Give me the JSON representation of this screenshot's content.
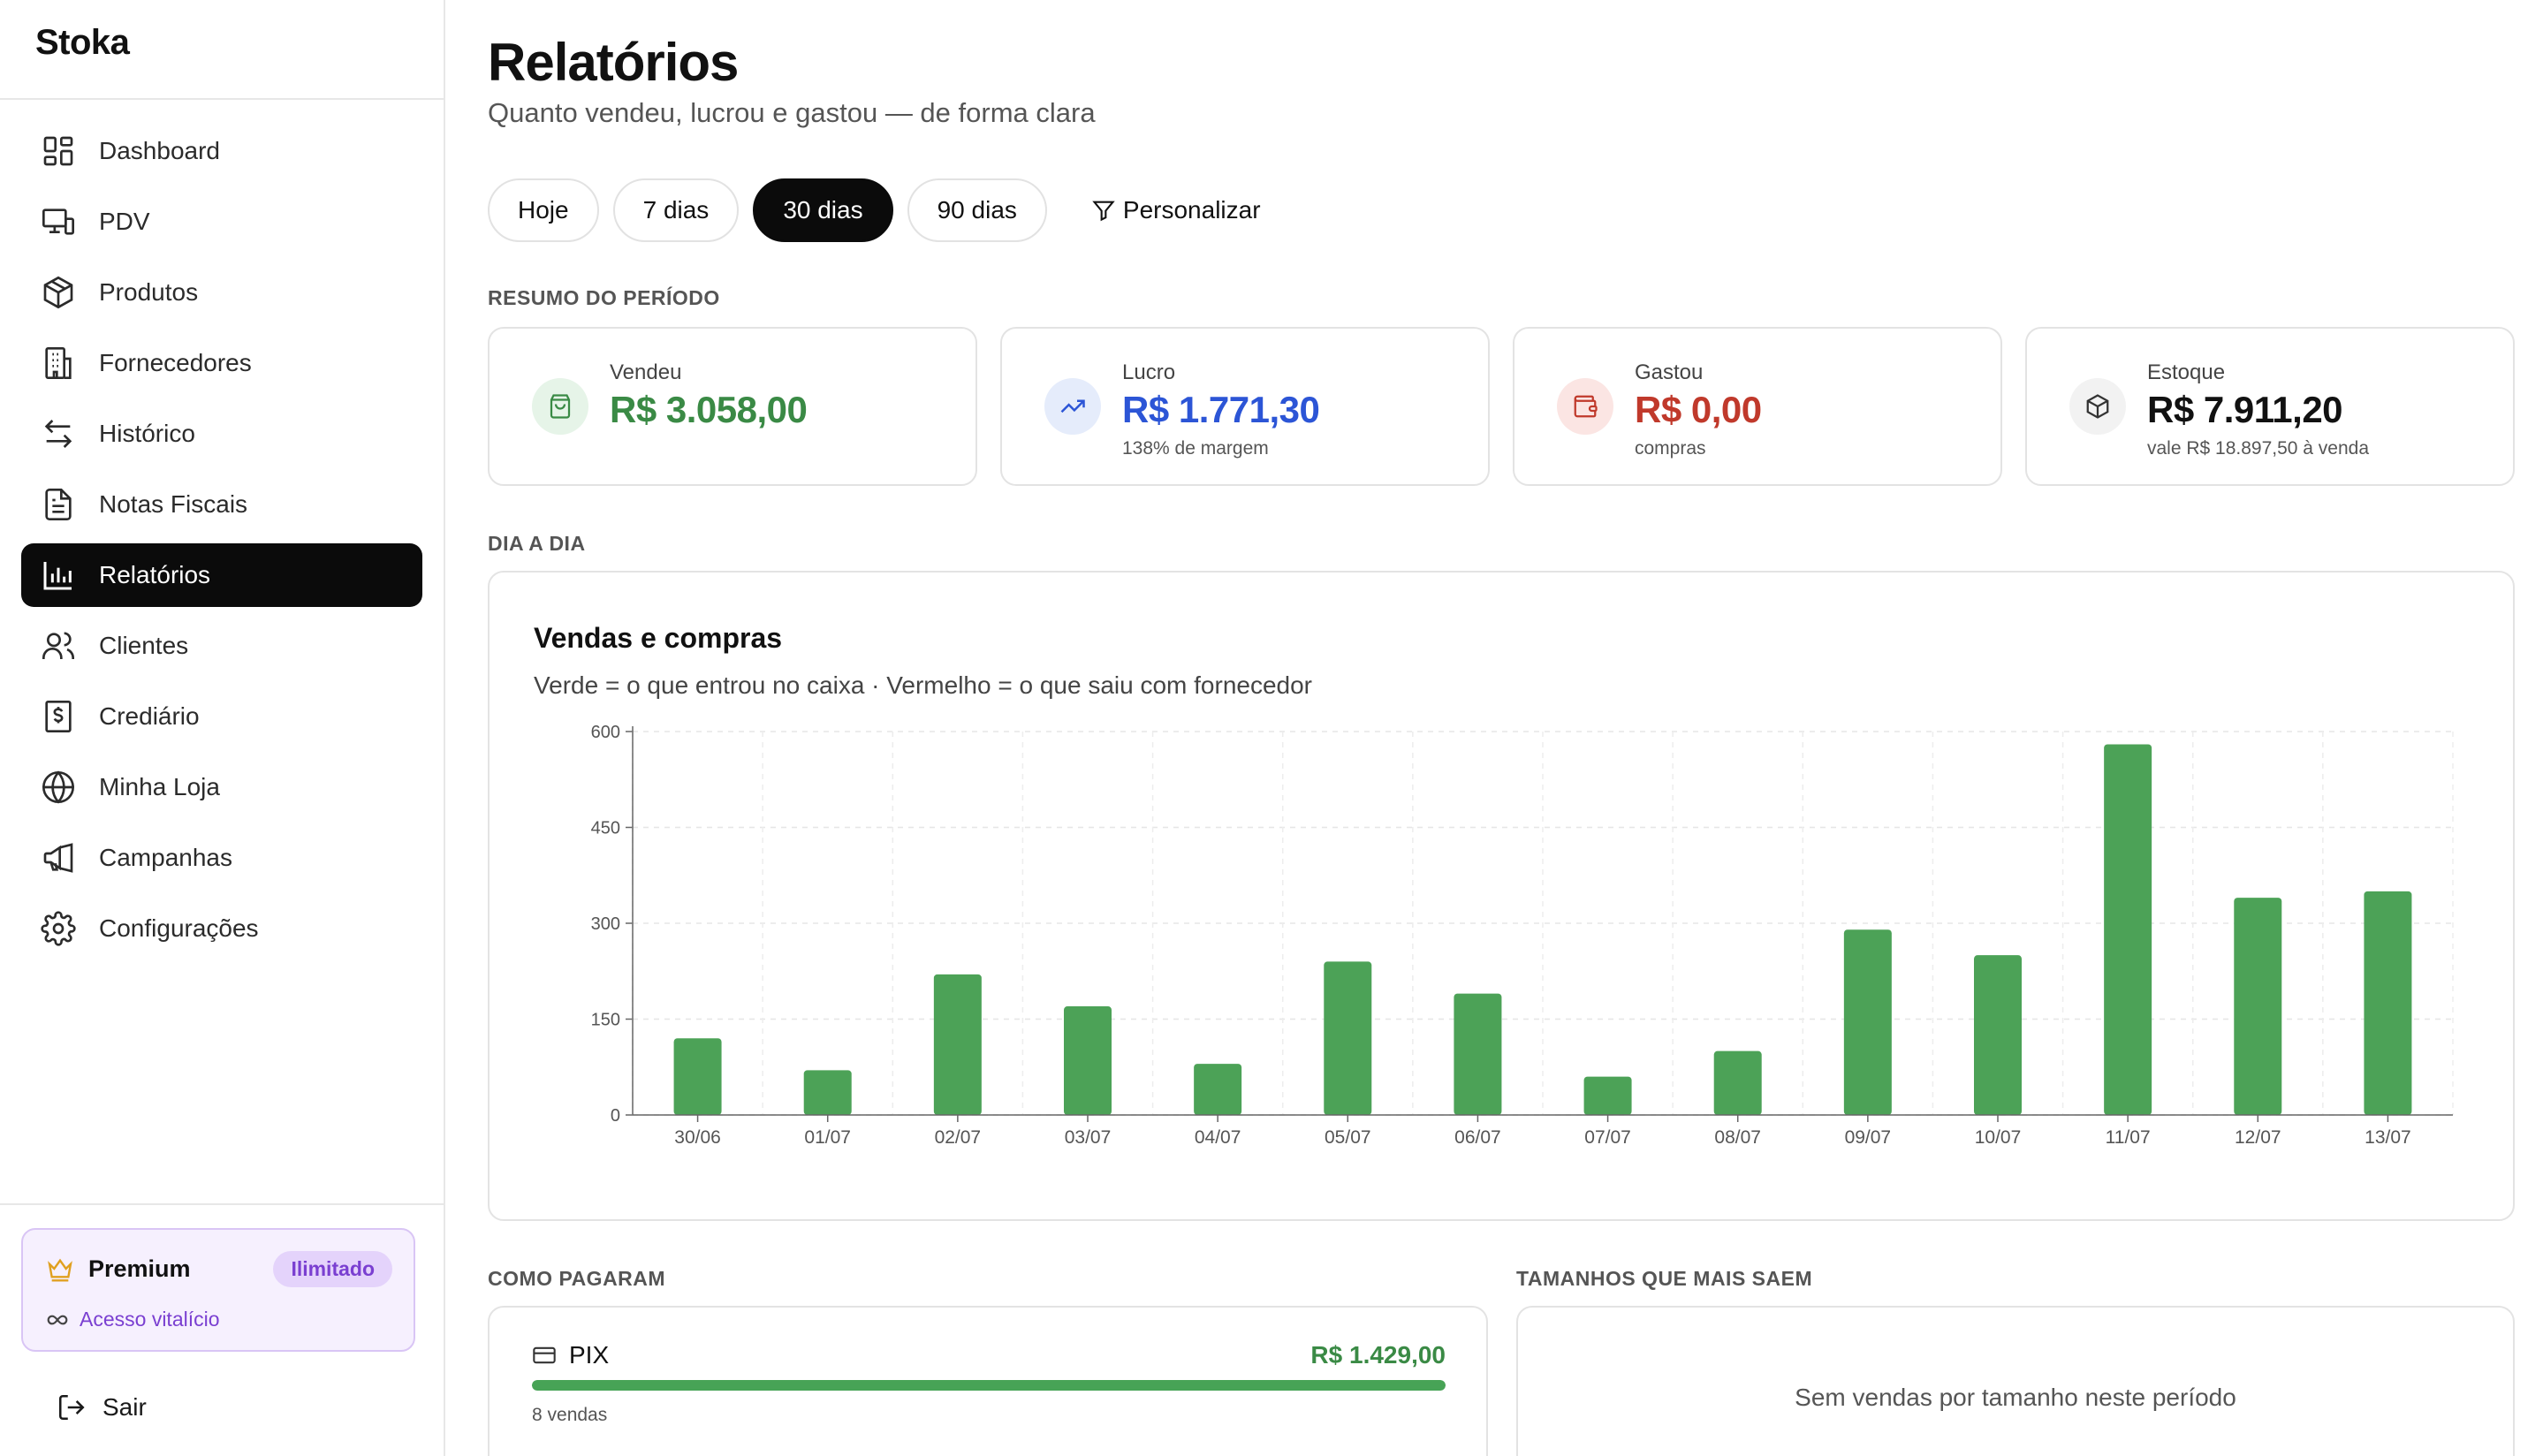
{
  "app": {
    "name": "Stoka"
  },
  "sidebar": {
    "items": [
      {
        "label": "Dashboard",
        "icon": "dashboard-icon"
      },
      {
        "label": "PDV",
        "icon": "pos-icon"
      },
      {
        "label": "Produtos",
        "icon": "box-icon"
      },
      {
        "label": "Fornecedores",
        "icon": "building-icon"
      },
      {
        "label": "Histórico",
        "icon": "swap-icon"
      },
      {
        "label": "Notas Fiscais",
        "icon": "document-icon"
      },
      {
        "label": "Relatórios",
        "icon": "bar-chart-icon",
        "active": true
      },
      {
        "label": "Clientes",
        "icon": "users-icon"
      },
      {
        "label": "Crediário",
        "icon": "receipt-icon"
      },
      {
        "label": "Minha Loja",
        "icon": "globe-icon"
      },
      {
        "label": "Campanhas",
        "icon": "megaphone-icon"
      },
      {
        "label": "Configurações",
        "icon": "gear-icon"
      }
    ],
    "premium": {
      "title": "Premium",
      "badge": "Ilimitado",
      "subtitle": "Acesso vitalício"
    },
    "logout": "Sair"
  },
  "header": {
    "title": "Relatórios",
    "subtitle": "Quanto vendeu, lucrou e gastou — de forma clara"
  },
  "filters": {
    "options": [
      "Hoje",
      "7 dias",
      "30 dias",
      "90 dias"
    ],
    "selected": "30 dias",
    "custom": "Personalizar"
  },
  "summary": {
    "label": "RESUMO DO PERÍODO",
    "cards": [
      {
        "label": "Vendeu",
        "value": "R$ 3.058,00",
        "sub": "",
        "color": "#3a8a45",
        "bg": "#e6f4e8",
        "icon": "shopping-bag-icon"
      },
      {
        "label": "Lucro",
        "value": "R$ 1.771,30",
        "sub": "138% de margem",
        "color": "#2c55d6",
        "bg": "#e5ecfb",
        "icon": "trending-up-icon"
      },
      {
        "label": "Gastou",
        "value": "R$ 0,00",
        "sub": "compras",
        "color": "#c0392b",
        "bg": "#fbe5e3",
        "icon": "wallet-icon"
      },
      {
        "label": "Estoque",
        "value": "R$ 7.911,20",
        "sub": "vale R$ 18.897,50 à venda",
        "color": "#111111",
        "bg": "#f2f2f2",
        "icon": "package-icon"
      }
    ]
  },
  "daily": {
    "label": "DIA A DIA",
    "title": "Vendas e compras",
    "subtitle": "Verde = o que entrou no caixa · Vermelho = o que saiu com fornecedor"
  },
  "chart_data": {
    "type": "bar",
    "categories": [
      "30/06",
      "01/07",
      "02/07",
      "03/07",
      "04/07",
      "05/07",
      "06/07",
      "07/07",
      "08/07",
      "09/07",
      "10/07",
      "11/07",
      "12/07",
      "13/07"
    ],
    "series": [
      {
        "values": [
          120,
          70,
          220,
          170,
          80,
          240,
          190,
          60,
          100,
          290,
          250,
          580,
          340,
          350
        ],
        "color": "#4ca257"
      }
    ],
    "yticks": [
      "0",
      "150",
      "300",
      "450",
      "600"
    ],
    "ylim": [
      0,
      600
    ],
    "grid": true
  },
  "payments": {
    "label": "COMO PAGARAM",
    "items": [
      {
        "name": "PIX",
        "value": "R$ 1.429,00",
        "count": "8 vendas",
        "share": 1.0
      }
    ]
  },
  "sizes": {
    "label": "TAMANHOS QUE MAIS SAEM",
    "empty": "Sem vendas por tamanho neste período"
  }
}
